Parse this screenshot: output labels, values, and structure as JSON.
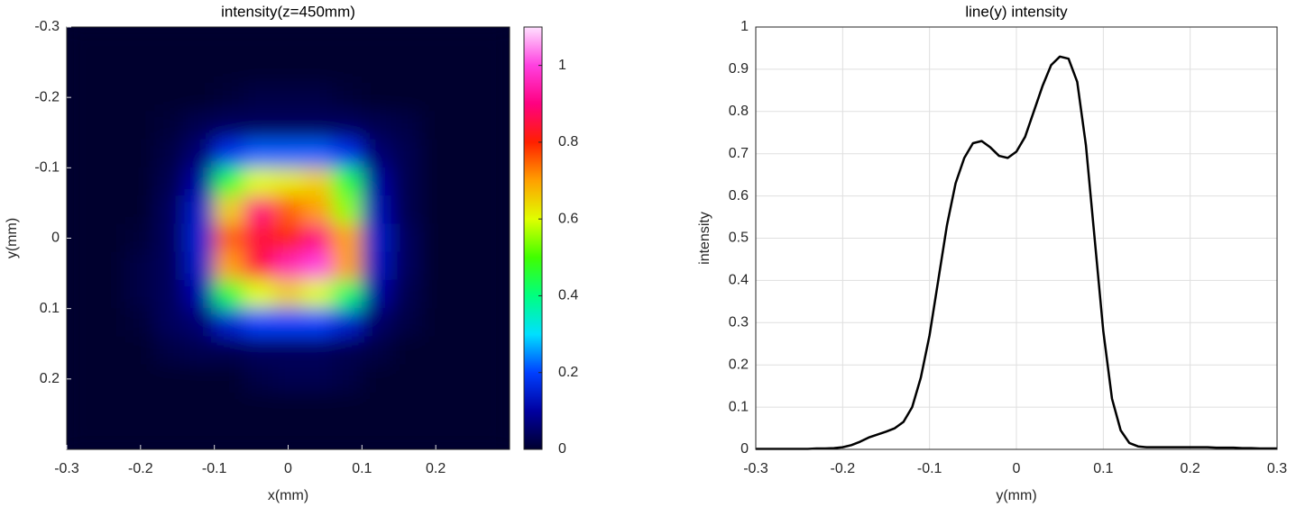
{
  "chart_data": [
    {
      "type": "heatmap",
      "title": "intensity(z=450mm)",
      "xlabel": "x(mm)",
      "ylabel": "y(mm)",
      "xlim": [
        -0.3,
        0.3
      ],
      "ylim": [
        -0.3,
        0.3
      ],
      "y_reversed": true,
      "xticks": [
        -0.3,
        -0.2,
        -0.1,
        0,
        0.1,
        0.2
      ],
      "yticks": [
        -0.3,
        -0.2,
        -0.1,
        0,
        0.1,
        0.2
      ],
      "clim": [
        0,
        1.1
      ],
      "cticks": [
        0,
        0.2,
        0.4,
        0.6,
        0.8,
        1
      ],
      "colormap": [
        "#00002e",
        "#0000a0",
        "#0040ff",
        "#00e0ff",
        "#00ff80",
        "#40ff00",
        "#e0ff00",
        "#ffa000",
        "#ff2000",
        "#ff0080",
        "#ff40e0",
        "#ffe0ff"
      ],
      "z": [
        [
          0,
          0,
          0,
          0,
          0,
          0,
          0,
          0,
          0,
          0,
          0,
          0,
          0,
          0,
          0
        ],
        [
          0,
          0,
          0,
          0,
          0,
          0,
          0,
          0,
          0,
          0,
          0,
          0,
          0,
          0,
          0
        ],
        [
          0,
          0,
          0,
          0,
          0,
          0.01,
          0.02,
          0.02,
          0.02,
          0.01,
          0,
          0,
          0,
          0,
          0
        ],
        [
          0,
          0,
          0,
          0.01,
          0.03,
          0.04,
          0.04,
          0.04,
          0.04,
          0.04,
          0.03,
          0.02,
          0,
          0,
          0
        ],
        [
          0,
          0,
          0,
          0.02,
          0.06,
          0.18,
          0.22,
          0.22,
          0.22,
          0.18,
          0.06,
          0.03,
          0,
          0,
          0
        ],
        [
          0,
          0,
          0,
          0.03,
          0.1,
          0.45,
          0.6,
          0.62,
          0.65,
          0.45,
          0.1,
          0.03,
          0,
          0,
          0
        ],
        [
          0,
          0,
          0,
          0.04,
          0.14,
          0.65,
          0.9,
          0.75,
          0.7,
          0.55,
          0.12,
          0.03,
          0,
          0,
          0
        ],
        [
          0,
          0,
          0.01,
          0.04,
          0.15,
          0.75,
          0.85,
          0.8,
          0.9,
          0.7,
          0.14,
          0.04,
          0,
          0,
          0
        ],
        [
          0,
          0,
          0.02,
          0.04,
          0.14,
          0.7,
          0.85,
          0.95,
          1.0,
          0.7,
          0.13,
          0.04,
          0,
          0,
          0
        ],
        [
          0,
          0,
          0.02,
          0.04,
          0.11,
          0.45,
          0.6,
          0.65,
          0.6,
          0.42,
          0.1,
          0.03,
          0,
          0,
          0
        ],
        [
          0,
          0,
          0.01,
          0.04,
          0.06,
          0.15,
          0.2,
          0.2,
          0.2,
          0.15,
          0.05,
          0.02,
          0,
          0,
          0
        ],
        [
          0,
          0,
          0,
          0.02,
          0.03,
          0.03,
          0.04,
          0.04,
          0.04,
          0.03,
          0.02,
          0,
          0,
          0,
          0
        ],
        [
          0,
          0,
          0,
          0,
          0,
          0,
          0.02,
          0.03,
          0.03,
          0.02,
          0,
          0,
          0,
          0,
          0
        ],
        [
          0,
          0,
          0,
          0,
          0,
          0,
          0,
          0,
          0,
          0,
          0,
          0,
          0,
          0,
          0
        ],
        [
          0,
          0,
          0,
          0,
          0,
          0,
          0,
          0,
          0,
          0,
          0,
          0,
          0,
          0,
          0
        ]
      ]
    },
    {
      "type": "line",
      "title": "line(y) intensity",
      "xlabel": "y(mm)",
      "ylabel": "intensity",
      "xlim": [
        -0.3,
        0.3
      ],
      "ylim": [
        0,
        1
      ],
      "grid": true,
      "color": "#000000",
      "xticks": [
        -0.3,
        -0.2,
        -0.1,
        0,
        0.1,
        0.2,
        0.3
      ],
      "yticks": [
        0,
        0.1,
        0.2,
        0.3,
        0.4,
        0.5,
        0.6,
        0.7,
        0.8,
        0.9,
        1
      ],
      "x": [
        -0.3,
        -0.29,
        -0.28,
        -0.27,
        -0.26,
        -0.25,
        -0.24,
        -0.23,
        -0.22,
        -0.21,
        -0.2,
        -0.19,
        -0.18,
        -0.17,
        -0.16,
        -0.15,
        -0.14,
        -0.13,
        -0.12,
        -0.11,
        -0.1,
        -0.09,
        -0.08,
        -0.07,
        -0.06,
        -0.05,
        -0.04,
        -0.03,
        -0.02,
        -0.01,
        0,
        0.01,
        0.02,
        0.03,
        0.04,
        0.05,
        0.06,
        0.07,
        0.08,
        0.09,
        0.1,
        0.11,
        0.12,
        0.13,
        0.14,
        0.15,
        0.16,
        0.17,
        0.18,
        0.19,
        0.2,
        0.21,
        0.22,
        0.23,
        0.24,
        0.25,
        0.26,
        0.27,
        0.28,
        0.29,
        0.3
      ],
      "values": [
        0.001,
        0.001,
        0.001,
        0.001,
        0.001,
        0.001,
        0.001,
        0.002,
        0.002,
        0.003,
        0.005,
        0.01,
        0.018,
        0.028,
        0.035,
        0.042,
        0.05,
        0.065,
        0.1,
        0.17,
        0.27,
        0.4,
        0.53,
        0.63,
        0.69,
        0.725,
        0.73,
        0.715,
        0.695,
        0.69,
        0.705,
        0.74,
        0.8,
        0.86,
        0.91,
        0.93,
        0.925,
        0.87,
        0.72,
        0.5,
        0.28,
        0.12,
        0.045,
        0.015,
        0.007,
        0.005,
        0.005,
        0.005,
        0.005,
        0.005,
        0.005,
        0.005,
        0.005,
        0.004,
        0.004,
        0.004,
        0.003,
        0.003,
        0.002,
        0.002,
        0.002
      ]
    }
  ]
}
